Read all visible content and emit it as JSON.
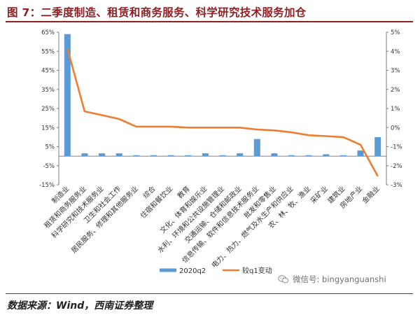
{
  "figure": {
    "title": "图 7：二季度制造、租赁和商务服务、科学研究技术服务加仓",
    "source": "数据来源：Wind，西南证券整理",
    "watermark": "微信号: bingyanguanshi"
  },
  "colors": {
    "title": "#8e1f22",
    "bar": "#5b9bd5",
    "line": "#ed7d31",
    "axis": "#7f7f7f"
  },
  "chart_data": {
    "type": "bar",
    "categories": [
      "制造业",
      "租赁和商务服务业",
      "科学研究和技术服务业",
      "卫生和社会工作",
      "居民服务、修理和其他服务业",
      "综合",
      "住宿和餐饮业",
      "教育",
      "文化、体育和娱乐业",
      "水利、环境和公共设施管理业",
      "交通运输、仓储和邮政业",
      "信息传输、软件和信息技术服务业",
      "批发和零售业",
      "电力、热力、燃气及水生产和供应业",
      "农、林、牧、渔业",
      "采矿业",
      "建筑业",
      "房地产业",
      "金融业"
    ],
    "series": [
      {
        "name": "2020q2",
        "type": "bar",
        "axis": "left",
        "values": [
          64,
          1.5,
          1.5,
          1.5,
          0.5,
          0.5,
          0.5,
          0.5,
          1.5,
          0.5,
          1.5,
          9,
          1.5,
          0.5,
          0.5,
          1,
          0.5,
          3,
          10
        ]
      },
      {
        "name": "较q1变动",
        "type": "line",
        "axis": "right",
        "values": [
          4.15,
          0.85,
          0.65,
          0.45,
          0.05,
          0.05,
          0.05,
          0.0,
          0.0,
          0.0,
          0.0,
          -0.1,
          -0.15,
          -0.25,
          -0.4,
          -0.45,
          -0.5,
          -0.9,
          -2.55
        ]
      }
    ],
    "yticks_left": [
      "65%",
      "55%",
      "45%",
      "35%",
      "25%",
      "15%",
      "5%",
      "-5%",
      "-15%"
    ],
    "yticks_right": [
      "5%",
      "4%",
      "3%",
      "2%",
      "1%",
      "0%",
      "-1%",
      "-2%",
      "-3%"
    ],
    "ylim_left": [
      -15,
      65
    ],
    "ylim_right": [
      -3,
      5
    ],
    "grid": false,
    "legend_position": "bottom-left"
  }
}
